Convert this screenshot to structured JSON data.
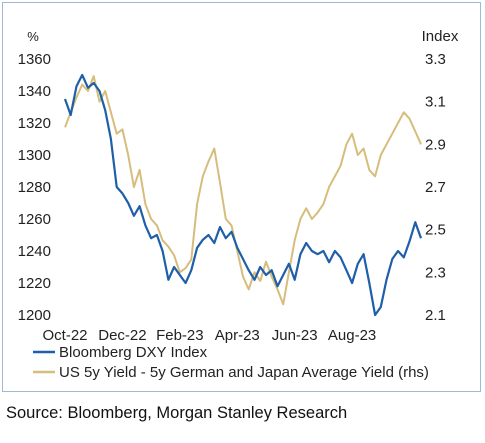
{
  "chart_data": {
    "type": "line",
    "y_left_unit": "%",
    "y_right_unit": "Index",
    "x_tick_labels": [
      "Oct-22",
      "Dec-22",
      "Feb-23",
      "Apr-23",
      "Jun-23",
      "Aug-23"
    ],
    "x_range": [
      0,
      12.4
    ],
    "x_ticks": [
      0,
      2,
      4,
      6,
      8,
      10
    ],
    "y_left_ticks": [
      1200,
      1220,
      1240,
      1260,
      1280,
      1300,
      1320,
      1340,
      1360
    ],
    "y_left_range": [
      1200,
      1360
    ],
    "y_right_ticks": [
      "2.1",
      "2.3",
      "2.5",
      "2.7",
      "2.9",
      "3.1",
      "3.3"
    ],
    "y_right_range": [
      2.1,
      3.3
    ],
    "grid": false,
    "legend_position": "bottom-left",
    "colors": {
      "series1": "#1f5fa8",
      "series2": "#d6bd7c"
    },
    "series": [
      {
        "name": "Bloomberg DXY Index",
        "axis": "left",
        "x": [
          0,
          0.2,
          0.4,
          0.6,
          0.8,
          1.0,
          1.2,
          1.4,
          1.6,
          1.8,
          2.0,
          2.2,
          2.4,
          2.6,
          2.8,
          3.0,
          3.2,
          3.4,
          3.6,
          3.8,
          4.0,
          4.2,
          4.4,
          4.6,
          4.8,
          5.0,
          5.2,
          5.4,
          5.6,
          5.8,
          6.0,
          6.2,
          6.4,
          6.6,
          6.8,
          7.0,
          7.2,
          7.4,
          7.6,
          7.8,
          8.0,
          8.2,
          8.4,
          8.6,
          8.8,
          9.0,
          9.2,
          9.4,
          9.6,
          9.8,
          10.0,
          10.2,
          10.4,
          10.6,
          10.8,
          11.0,
          11.2,
          11.4,
          11.6,
          11.8,
          12.0,
          12.2,
          12.4
        ],
        "values": [
          1335,
          1325,
          1343,
          1350,
          1342,
          1345,
          1340,
          1328,
          1310,
          1280,
          1276,
          1270,
          1262,
          1268,
          1256,
          1248,
          1250,
          1240,
          1222,
          1230,
          1225,
          1220,
          1228,
          1242,
          1247,
          1250,
          1245,
          1255,
          1248,
          1252,
          1242,
          1235,
          1228,
          1222,
          1230,
          1225,
          1228,
          1218,
          1225,
          1232,
          1222,
          1238,
          1245,
          1240,
          1238,
          1240,
          1233,
          1240,
          1236,
          1228,
          1220,
          1232,
          1238,
          1220,
          1200,
          1205,
          1222,
          1235,
          1240,
          1236,
          1246,
          1258,
          1248
        ]
      },
      {
        "name": "US 5y Yield - 5y German and Japan Average Yield (rhs)",
        "axis": "right",
        "x": [
          0,
          0.2,
          0.4,
          0.6,
          0.8,
          1.0,
          1.2,
          1.4,
          1.6,
          1.8,
          2.0,
          2.2,
          2.4,
          2.6,
          2.8,
          3.0,
          3.2,
          3.4,
          3.6,
          3.8,
          4.0,
          4.2,
          4.4,
          4.6,
          4.8,
          5.0,
          5.2,
          5.4,
          5.6,
          5.8,
          6.0,
          6.2,
          6.4,
          6.6,
          6.8,
          7.0,
          7.2,
          7.4,
          7.6,
          7.8,
          8.0,
          8.2,
          8.4,
          8.6,
          8.8,
          9.0,
          9.2,
          9.4,
          9.6,
          9.8,
          10.0,
          10.2,
          10.4,
          10.6,
          10.8,
          11.0,
          11.2,
          11.4,
          11.6,
          11.8,
          12.0,
          12.2,
          12.4
        ],
        "values": [
          2.98,
          3.05,
          3.12,
          3.18,
          3.15,
          3.22,
          3.1,
          3.15,
          3.05,
          2.95,
          2.97,
          2.85,
          2.7,
          2.78,
          2.62,
          2.55,
          2.52,
          2.45,
          2.42,
          2.38,
          2.3,
          2.32,
          2.36,
          2.62,
          2.75,
          2.82,
          2.88,
          2.72,
          2.55,
          2.52,
          2.4,
          2.28,
          2.22,
          2.3,
          2.26,
          2.35,
          2.28,
          2.22,
          2.15,
          2.3,
          2.45,
          2.55,
          2.6,
          2.55,
          2.58,
          2.62,
          2.7,
          2.75,
          2.8,
          2.9,
          2.95,
          2.85,
          2.88,
          2.78,
          2.75,
          2.85,
          2.9,
          2.95,
          3.0,
          3.05,
          3.02,
          2.96,
          2.9
        ]
      }
    ]
  },
  "footer": {
    "source": "Source: Bloomberg, Morgan Stanley Research"
  }
}
